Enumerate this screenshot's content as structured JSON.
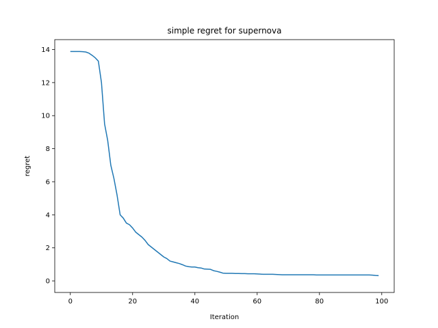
{
  "chart_data": {
    "type": "line",
    "title": "simple regret for supernova",
    "xlabel": "Iteration",
    "ylabel": "regret",
    "xlim": [
      -5,
      104
    ],
    "ylim": [
      -0.7,
      14.6
    ],
    "xticks": [
      0,
      20,
      40,
      60,
      80,
      100
    ],
    "yticks": [
      0,
      2,
      4,
      6,
      8,
      10,
      12,
      14
    ],
    "grid": false,
    "line_color": "#1f77b4",
    "series": [
      {
        "x": [
          0,
          1,
          2,
          3,
          4,
          5,
          6,
          7,
          8,
          9,
          10,
          11,
          12,
          13,
          14,
          15,
          16,
          17,
          18,
          19,
          20,
          21,
          22,
          23,
          24,
          25,
          26,
          27,
          28,
          29,
          30,
          31,
          32,
          33,
          34,
          35,
          36,
          37,
          38,
          39,
          40,
          41,
          42,
          43,
          44,
          45,
          46,
          47,
          48,
          49,
          50,
          51,
          52,
          53,
          54,
          55,
          56,
          57,
          58,
          59,
          60,
          61,
          62,
          63,
          64,
          65,
          66,
          67,
          68,
          69,
          70,
          71,
          72,
          73,
          74,
          75,
          76,
          77,
          78,
          79,
          80,
          81,
          82,
          83,
          84,
          85,
          86,
          87,
          88,
          89,
          90,
          91,
          92,
          93,
          94,
          95,
          96,
          97,
          98,
          99
        ],
        "values": [
          13.88,
          13.88,
          13.88,
          13.88,
          13.87,
          13.85,
          13.78,
          13.65,
          13.5,
          13.3,
          12.0,
          9.5,
          8.5,
          7.0,
          6.2,
          5.2,
          4.0,
          3.8,
          3.5,
          3.4,
          3.2,
          2.95,
          2.8,
          2.65,
          2.45,
          2.2,
          2.05,
          1.9,
          1.75,
          1.6,
          1.45,
          1.35,
          1.2,
          1.15,
          1.1,
          1.05,
          0.98,
          0.9,
          0.86,
          0.84,
          0.84,
          0.8,
          0.78,
          0.72,
          0.71,
          0.7,
          0.62,
          0.58,
          0.53,
          0.47,
          0.46,
          0.46,
          0.46,
          0.45,
          0.45,
          0.44,
          0.44,
          0.43,
          0.43,
          0.43,
          0.42,
          0.41,
          0.4,
          0.4,
          0.4,
          0.4,
          0.39,
          0.38,
          0.37,
          0.37,
          0.37,
          0.37,
          0.37,
          0.37,
          0.37,
          0.37,
          0.37,
          0.37,
          0.37,
          0.36,
          0.36,
          0.36,
          0.36,
          0.36,
          0.36,
          0.36,
          0.36,
          0.36,
          0.36,
          0.36,
          0.36,
          0.36,
          0.36,
          0.36,
          0.36,
          0.36,
          0.36,
          0.35,
          0.33,
          0.32
        ]
      }
    ]
  }
}
